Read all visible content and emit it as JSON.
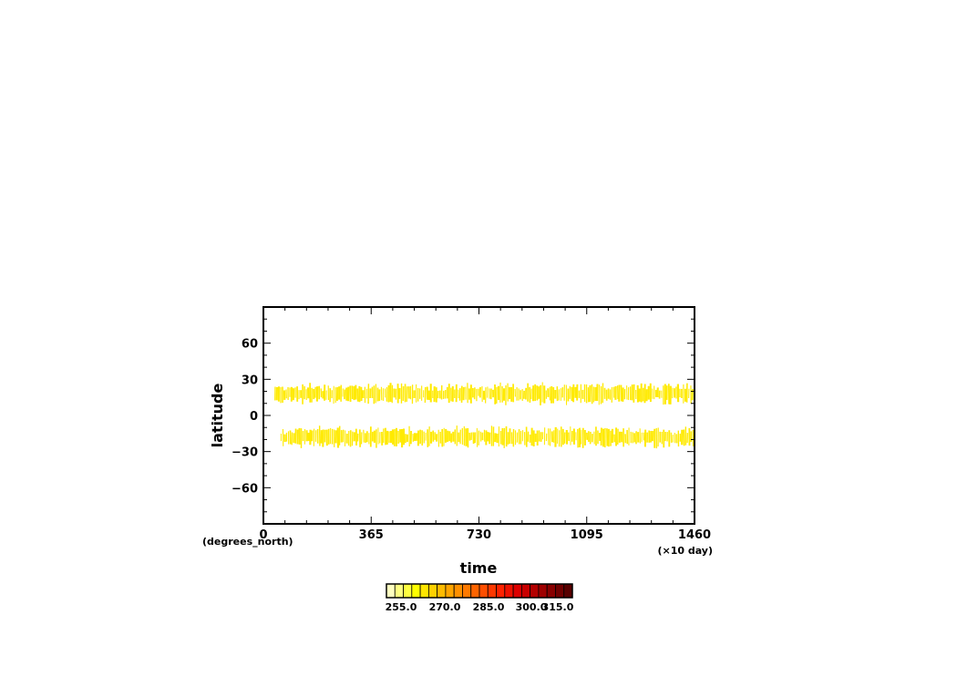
{
  "chart_data": {
    "type": "heatmap",
    "title": "",
    "xlabel": "time",
    "ylabel": "latitude",
    "x_units": "(×10 day)",
    "y_units": "(degrees_north)",
    "xlim": [
      0,
      1460
    ],
    "ylim": [
      -90,
      90
    ],
    "x_ticks": [
      "0",
      "365",
      "730",
      "1095",
      "1460"
    ],
    "x_tick_values": [
      0,
      365,
      730,
      1095,
      1460
    ],
    "y_ticks": [
      "60",
      "30",
      "0",
      "−30",
      "−60"
    ],
    "y_tick_values": [
      60,
      30,
      0,
      -30,
      -60
    ],
    "grid": false,
    "bands": [
      {
        "name": "",
        "center_lat": 18,
        "start_time": 40,
        "end_time": 1460,
        "color": "#ffea00"
      },
      {
        "name": "",
        "center_lat": -18,
        "start_time": 60,
        "end_time": 1460,
        "color": "#ffea00"
      }
    ],
    "colorbar": {
      "colors": [
        "#ffffc0",
        "#ffff80",
        "#ffff40",
        "#ffff00",
        "#ffe600",
        "#ffd000",
        "#ffbb00",
        "#ffa500",
        "#ff9000",
        "#ff7a00",
        "#ff6400",
        "#ff4e00",
        "#ff3800",
        "#ff2200",
        "#ee1100",
        "#dd0000",
        "#c80000",
        "#b30000",
        "#9e0000",
        "#880000",
        "#700000",
        "#580000"
      ],
      "labels": [
        "255.0",
        "270.0",
        "285.0",
        "300.0",
        "315.0"
      ]
    }
  }
}
